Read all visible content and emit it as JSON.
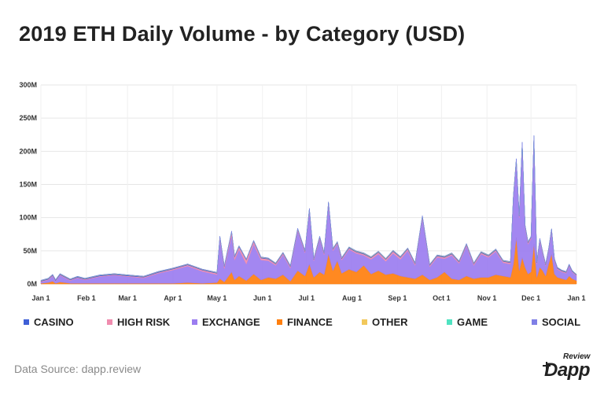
{
  "title": "2019 ETH Daily Volume - by Category (USD)",
  "source": "Data Source: dapp.review",
  "logo": {
    "small": "Review",
    "word": "Dapp"
  },
  "chart_data": {
    "type": "area",
    "stacked": true,
    "title": "2019 ETH Daily Volume - by Category (USD)",
    "xlabel": "",
    "ylabel": "",
    "ylim": [
      0,
      300
    ],
    "unit": "M USD",
    "grid": true,
    "legend_position": "bottom",
    "y_ticks": [
      0,
      50,
      100,
      150,
      200,
      250,
      300
    ],
    "y_tick_labels": [
      "0M",
      "50M",
      "100M",
      "150M",
      "200M",
      "250M",
      "300M"
    ],
    "x_ticks": [
      0,
      31,
      59,
      90,
      120,
      151,
      181,
      212,
      243,
      273,
      304,
      334,
      365
    ],
    "x_tick_labels": [
      "Jan 1",
      "Feb 1",
      "Mar 1",
      "Apr 1",
      "May 1",
      "Jun 1",
      "Jul 1",
      "Aug 1",
      "Sep 1",
      "Oct 1",
      "Nov 1",
      "Dec 1",
      "Jan 1"
    ],
    "x_unit": "day of year",
    "series": [
      {
        "name": "FINANCE",
        "color": "#ff7f0e",
        "x": [
          0,
          5,
          8,
          10,
          13,
          20,
          25,
          30,
          40,
          50,
          60,
          70,
          80,
          90,
          100,
          110,
          120,
          122,
          125,
          130,
          132,
          135,
          140,
          145,
          150,
          155,
          160,
          165,
          170,
          175,
          180,
          183,
          186,
          190,
          193,
          196,
          199,
          202,
          205,
          210,
          215,
          220,
          225,
          230,
          235,
          240,
          245,
          250,
          255,
          260,
          265,
          270,
          275,
          280,
          285,
          290,
          295,
          300,
          305,
          310,
          315,
          320,
          322,
          324,
          326,
          328,
          330,
          332,
          334,
          336,
          338,
          340,
          342,
          344,
          346,
          348,
          350,
          352,
          355,
          358,
          360,
          362,
          364,
          365
        ],
        "values": [
          1,
          2,
          4,
          1,
          3,
          1,
          1,
          1,
          1,
          1,
          1,
          1,
          1,
          1,
          2,
          1,
          2,
          8,
          3,
          18,
          6,
          12,
          5,
          15,
          6,
          10,
          8,
          14,
          4,
          20,
          12,
          30,
          10,
          18,
          14,
          45,
          20,
          35,
          16,
          22,
          18,
          28,
          15,
          20,
          14,
          16,
          12,
          10,
          8,
          14,
          6,
          10,
          18,
          8,
          6,
          12,
          8,
          10,
          10,
          14,
          12,
          10,
          30,
          70,
          20,
          40,
          25,
          15,
          18,
          60,
          10,
          25,
          20,
          12,
          30,
          45,
          15,
          10,
          8,
          6,
          12,
          8,
          6,
          5
        ]
      },
      {
        "name": "EXCHANGE",
        "color": "#9b7df0",
        "x": [
          0,
          5,
          8,
          10,
          13,
          20,
          25,
          30,
          40,
          50,
          60,
          70,
          80,
          90,
          100,
          110,
          120,
          122,
          125,
          130,
          132,
          135,
          140,
          145,
          150,
          155,
          160,
          165,
          170,
          175,
          180,
          183,
          186,
          190,
          193,
          196,
          199,
          202,
          205,
          210,
          215,
          220,
          225,
          230,
          235,
          240,
          245,
          250,
          255,
          260,
          265,
          270,
          275,
          280,
          285,
          290,
          295,
          300,
          305,
          310,
          315,
          320,
          322,
          324,
          326,
          328,
          330,
          332,
          334,
          336,
          338,
          340,
          342,
          344,
          346,
          348,
          350,
          352,
          355,
          358,
          360,
          362,
          364,
          365
        ],
        "values": [
          2,
          4,
          8,
          3,
          10,
          4,
          8,
          5,
          10,
          12,
          10,
          8,
          15,
          20,
          25,
          18,
          12,
          60,
          20,
          55,
          30,
          40,
          25,
          45,
          30,
          25,
          20,
          30,
          20,
          60,
          35,
          80,
          25,
          50,
          30,
          75,
          30,
          25,
          20,
          30,
          28,
          15,
          22,
          25,
          20,
          30,
          25,
          40,
          20,
          85,
          20,
          30,
          20,
          35,
          25,
          45,
          20,
          35,
          30,
          35,
          20,
          20,
          100,
          115,
          80,
          170,
          60,
          45,
          50,
          160,
          20,
          40,
          25,
          15,
          20,
          35,
          20,
          12,
          10,
          10,
          15,
          10,
          8,
          7
        ]
      },
      {
        "name": "HIGH RISK",
        "color": "#f08caf",
        "x": [
          0,
          60,
          120,
          125,
          130,
          135,
          140,
          145,
          150,
          160,
          170,
          180,
          200,
          220,
          240,
          260,
          280,
          300,
          320,
          340,
          365
        ],
        "values": [
          1,
          1,
          2,
          3,
          5,
          4,
          6,
          4,
          3,
          2,
          2,
          2,
          2,
          2,
          3,
          2,
          2,
          2,
          2,
          2,
          1
        ]
      },
      {
        "name": "CASINO",
        "color": "#3f5fd6",
        "x": [
          0,
          120,
          180,
          240,
          300,
          365
        ],
        "values": [
          1,
          1,
          1,
          1,
          1,
          1
        ]
      },
      {
        "name": "OTHER",
        "color": "#f2c85b",
        "x": [
          0,
          120,
          180,
          240,
          300,
          365
        ],
        "values": [
          0.3,
          0.3,
          0.5,
          0.5,
          0.5,
          0.3
        ]
      },
      {
        "name": "GAME",
        "color": "#4fe3c1",
        "x": [
          0,
          120,
          180,
          240,
          300,
          365
        ],
        "values": [
          0.2,
          0.2,
          0.3,
          0.3,
          0.3,
          0.2
        ]
      },
      {
        "name": "SOCIAL",
        "color": "#7f7fe6",
        "x": [
          0,
          120,
          180,
          240,
          300,
          365
        ],
        "values": [
          0.1,
          0.1,
          0.1,
          0.1,
          0.1,
          0.1
        ]
      }
    ],
    "legend": [
      {
        "name": "CASINO",
        "color": "#3f5fd6"
      },
      {
        "name": "HIGH RISK",
        "color": "#f08caf"
      },
      {
        "name": "EXCHANGE",
        "color": "#9b7df0"
      },
      {
        "name": "FINANCE",
        "color": "#ff7f0e"
      },
      {
        "name": "OTHER",
        "color": "#f2c85b"
      },
      {
        "name": "GAME",
        "color": "#4fe3c1"
      },
      {
        "name": "SOCIAL",
        "color": "#7f7fe6"
      }
    ]
  }
}
